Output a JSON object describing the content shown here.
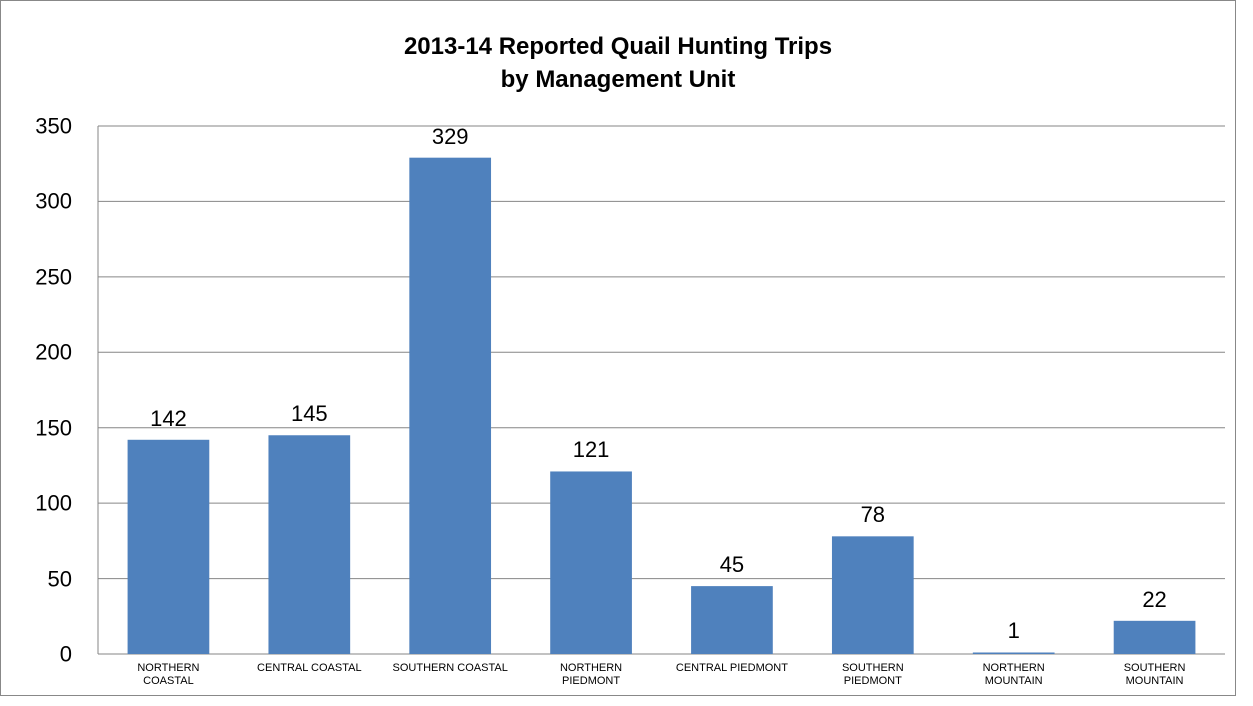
{
  "chart_data": {
    "type": "bar",
    "title": "2013-14 Reported Quail Hunting Trips\nby Management Unit",
    "categories": [
      "NORTHERN\nCOASTAL",
      "CENTRAL COASTAL",
      "SOUTHERN COASTAL",
      "NORTHERN\nPIEDMONT",
      "CENTRAL PIEDMONT",
      "SOUTHERN\nPIEDMONT",
      "NORTHERN\nMOUNTAIN",
      "SOUTHERN\nMOUNTAIN"
    ],
    "values": [
      142,
      145,
      329,
      121,
      45,
      78,
      1,
      22
    ],
    "color": "#4f81bd",
    "ylim": [
      0,
      350
    ],
    "yticks": [
      0,
      50,
      100,
      150,
      200,
      250,
      300,
      350
    ],
    "grid": true
  }
}
